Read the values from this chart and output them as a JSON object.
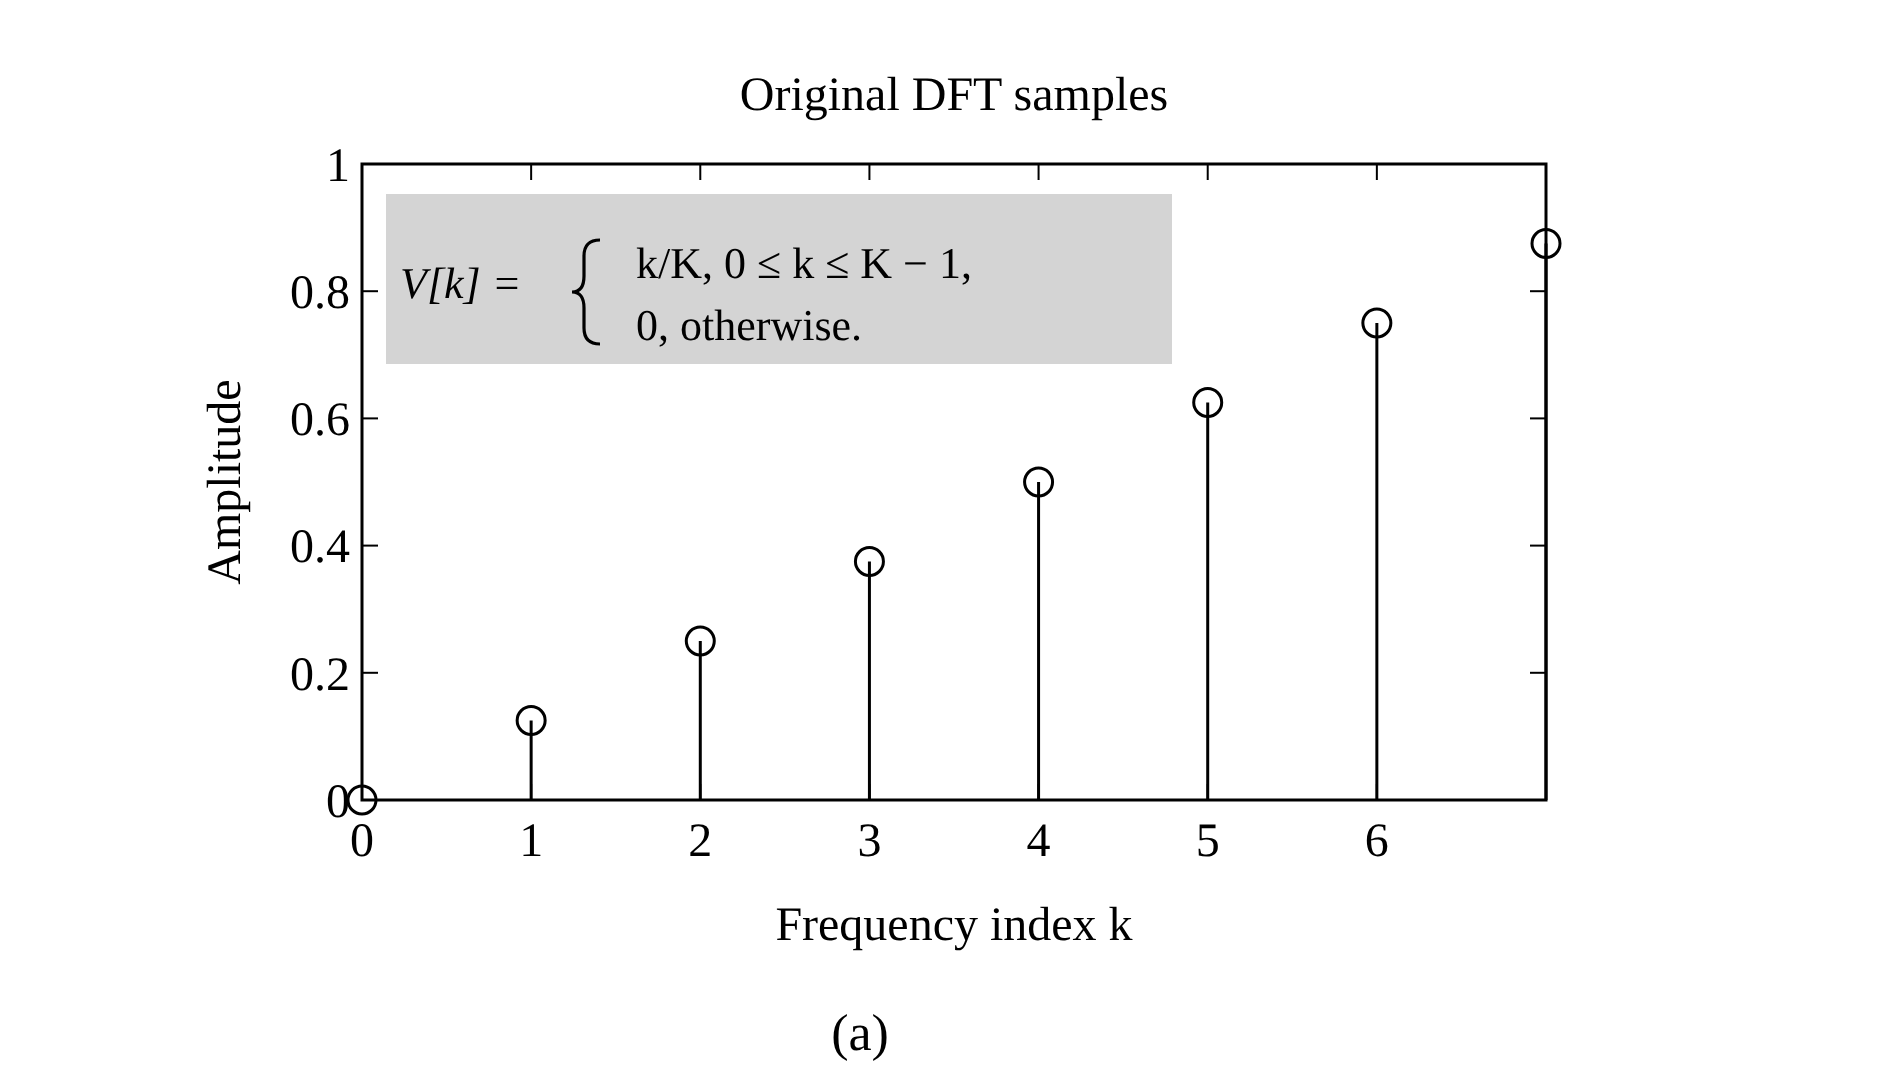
{
  "chart_data": {
    "type": "lollipop",
    "title": "Original DFT samples",
    "xlabel": "Frequency index k",
    "ylabel": "Amplitude",
    "x": [
      0,
      1,
      2,
      3,
      4,
      5,
      6,
      7
    ],
    "values": [
      0,
      0.125,
      0.25,
      0.375,
      0.5,
      0.625,
      0.75,
      0.875
    ],
    "color": "#000000",
    "marker": "circle",
    "xlim": [
      0,
      7
    ],
    "xticks": [
      0,
      1,
      2,
      3,
      4,
      5,
      6,
      {
        "value": 7,
        "label": null
      }
    ],
    "ylim": [
      0,
      1
    ],
    "yticks": [
      0,
      0.2,
      0.4,
      0.6,
      0.8,
      1
    ],
    "annotations": [
      "V[k] =",
      "k/K,   0 ≤ k ≤ K − 1,",
      "0,         otherwise.",
      "(a)"
    ]
  }
}
